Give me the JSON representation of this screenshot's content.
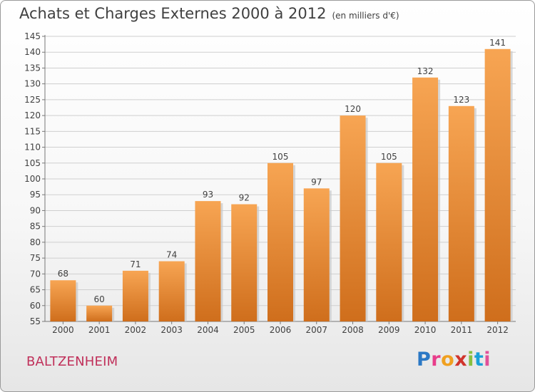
{
  "header": {
    "title": "Achats et Charges Externes 2000 à 2012",
    "unit": "(en milliers d'€)"
  },
  "footer": {
    "commune": "BALTZENHEIM",
    "logo_letters": [
      "P",
      "r",
      "o",
      "x",
      "i",
      "t",
      "i"
    ],
    "logo_colors": [
      "#2b78c5",
      "#e83d8a",
      "#f0a020",
      "#d0342c",
      "#88c040",
      "#1aa0d8",
      "#e0509a"
    ]
  },
  "chart_data": {
    "type": "bar",
    "categories": [
      "2000",
      "2001",
      "2002",
      "2003",
      "2004",
      "2005",
      "2006",
      "2007",
      "2008",
      "2009",
      "2010",
      "2011",
      "2012"
    ],
    "values": [
      68,
      60,
      71,
      74,
      93,
      92,
      105,
      97,
      120,
      105,
      132,
      123,
      141
    ],
    "data_labels": [
      "68",
      "60",
      "71",
      "74",
      "93",
      "92",
      "105",
      "97",
      "120",
      "105",
      "132",
      "123",
      "141"
    ],
    "ylim": [
      55,
      145
    ],
    "yticks": [
      55,
      60,
      65,
      70,
      75,
      80,
      85,
      90,
      95,
      100,
      105,
      110,
      115,
      120,
      125,
      130,
      135,
      140,
      145
    ],
    "grid": true,
    "bar_color_light": "#f7a553",
    "bar_color_dark": "#cf6e1c",
    "xlabel": "",
    "ylabel": ""
  }
}
